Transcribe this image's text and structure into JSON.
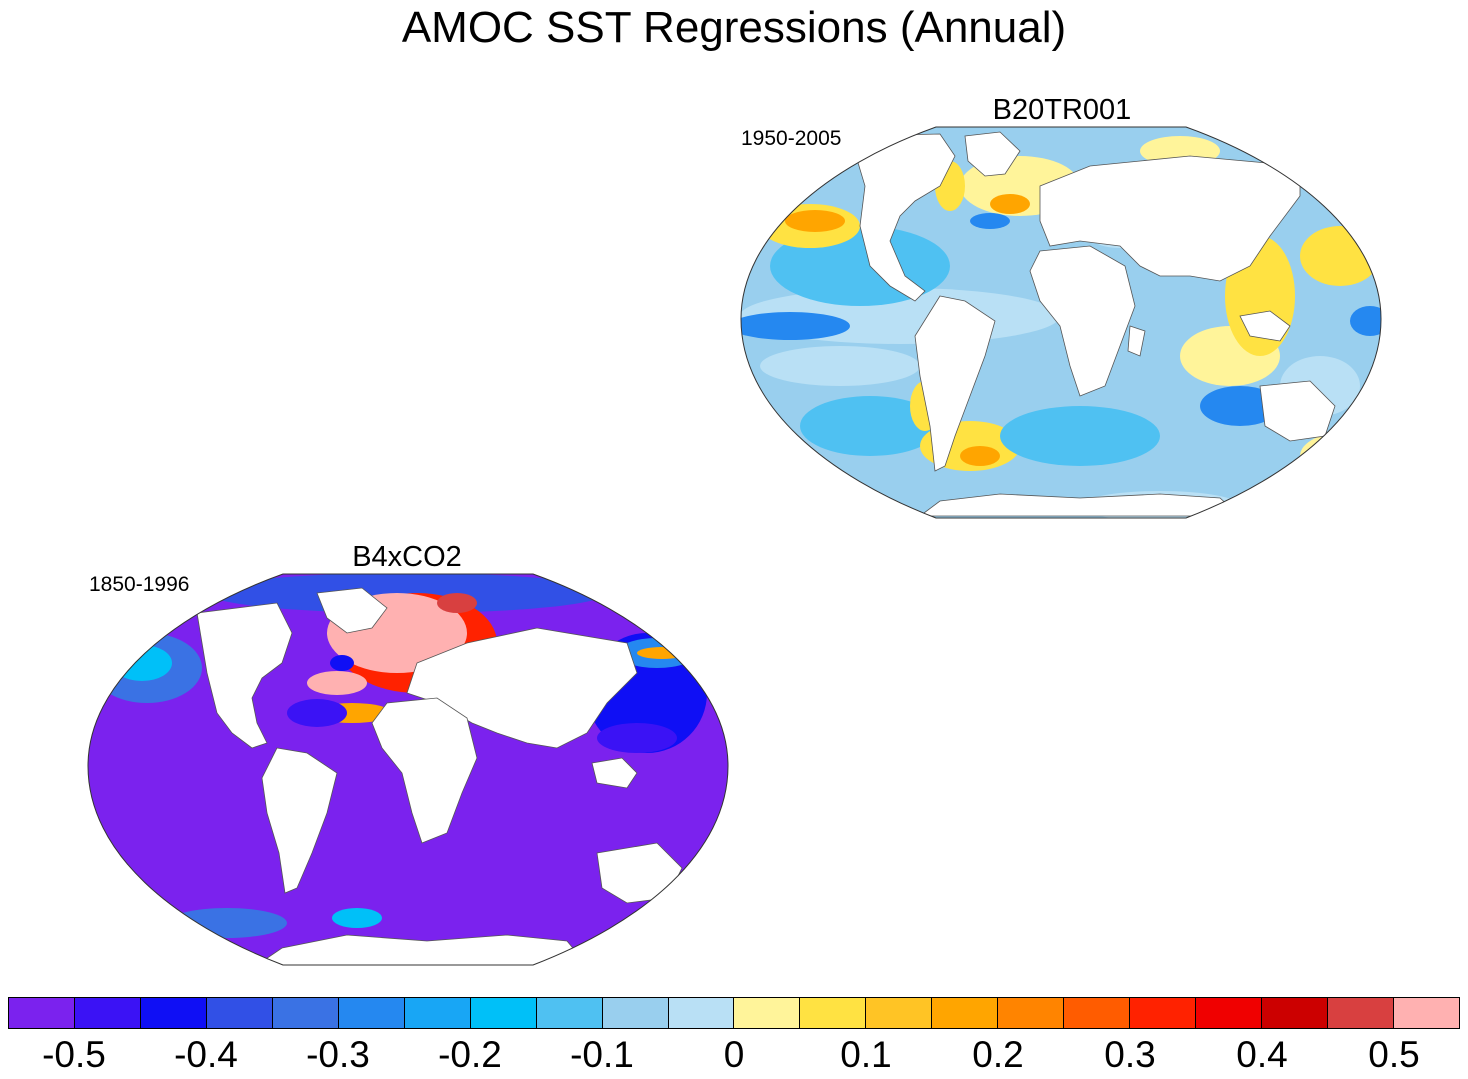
{
  "title": "AMOC SST Regressions (Annual)",
  "panels": [
    {
      "name": "B20TR001",
      "period": "1950-2005",
      "background_color": "#99cfee",
      "projection": "Robinson"
    },
    {
      "name": "B4xCO2",
      "period": "1850-1996",
      "background_color": "#7b22ee",
      "projection": "Robinson"
    }
  ],
  "colorbar": {
    "colors": [
      "#7b22ee",
      "#3b12f5",
      "#0f0ff5",
      "#3150e6",
      "#3a72e4",
      "#2588f0",
      "#18a6f5",
      "#00c0f8",
      "#4fc1f2",
      "#99cfee",
      "#b9e0f5",
      "#fff49a",
      "#ffe242",
      "#ffc425",
      "#ffa500",
      "#ff8400",
      "#ff5c00",
      "#ff2200",
      "#f00000",
      "#cc0000",
      "#d84040",
      "#ffb1b1"
    ],
    "labels": [
      "-0.5",
      "-0.4",
      "-0.3",
      "-0.2",
      "-0.1",
      "0",
      "0.1",
      "0.2",
      "0.3",
      "0.4",
      "0.5"
    ]
  }
}
